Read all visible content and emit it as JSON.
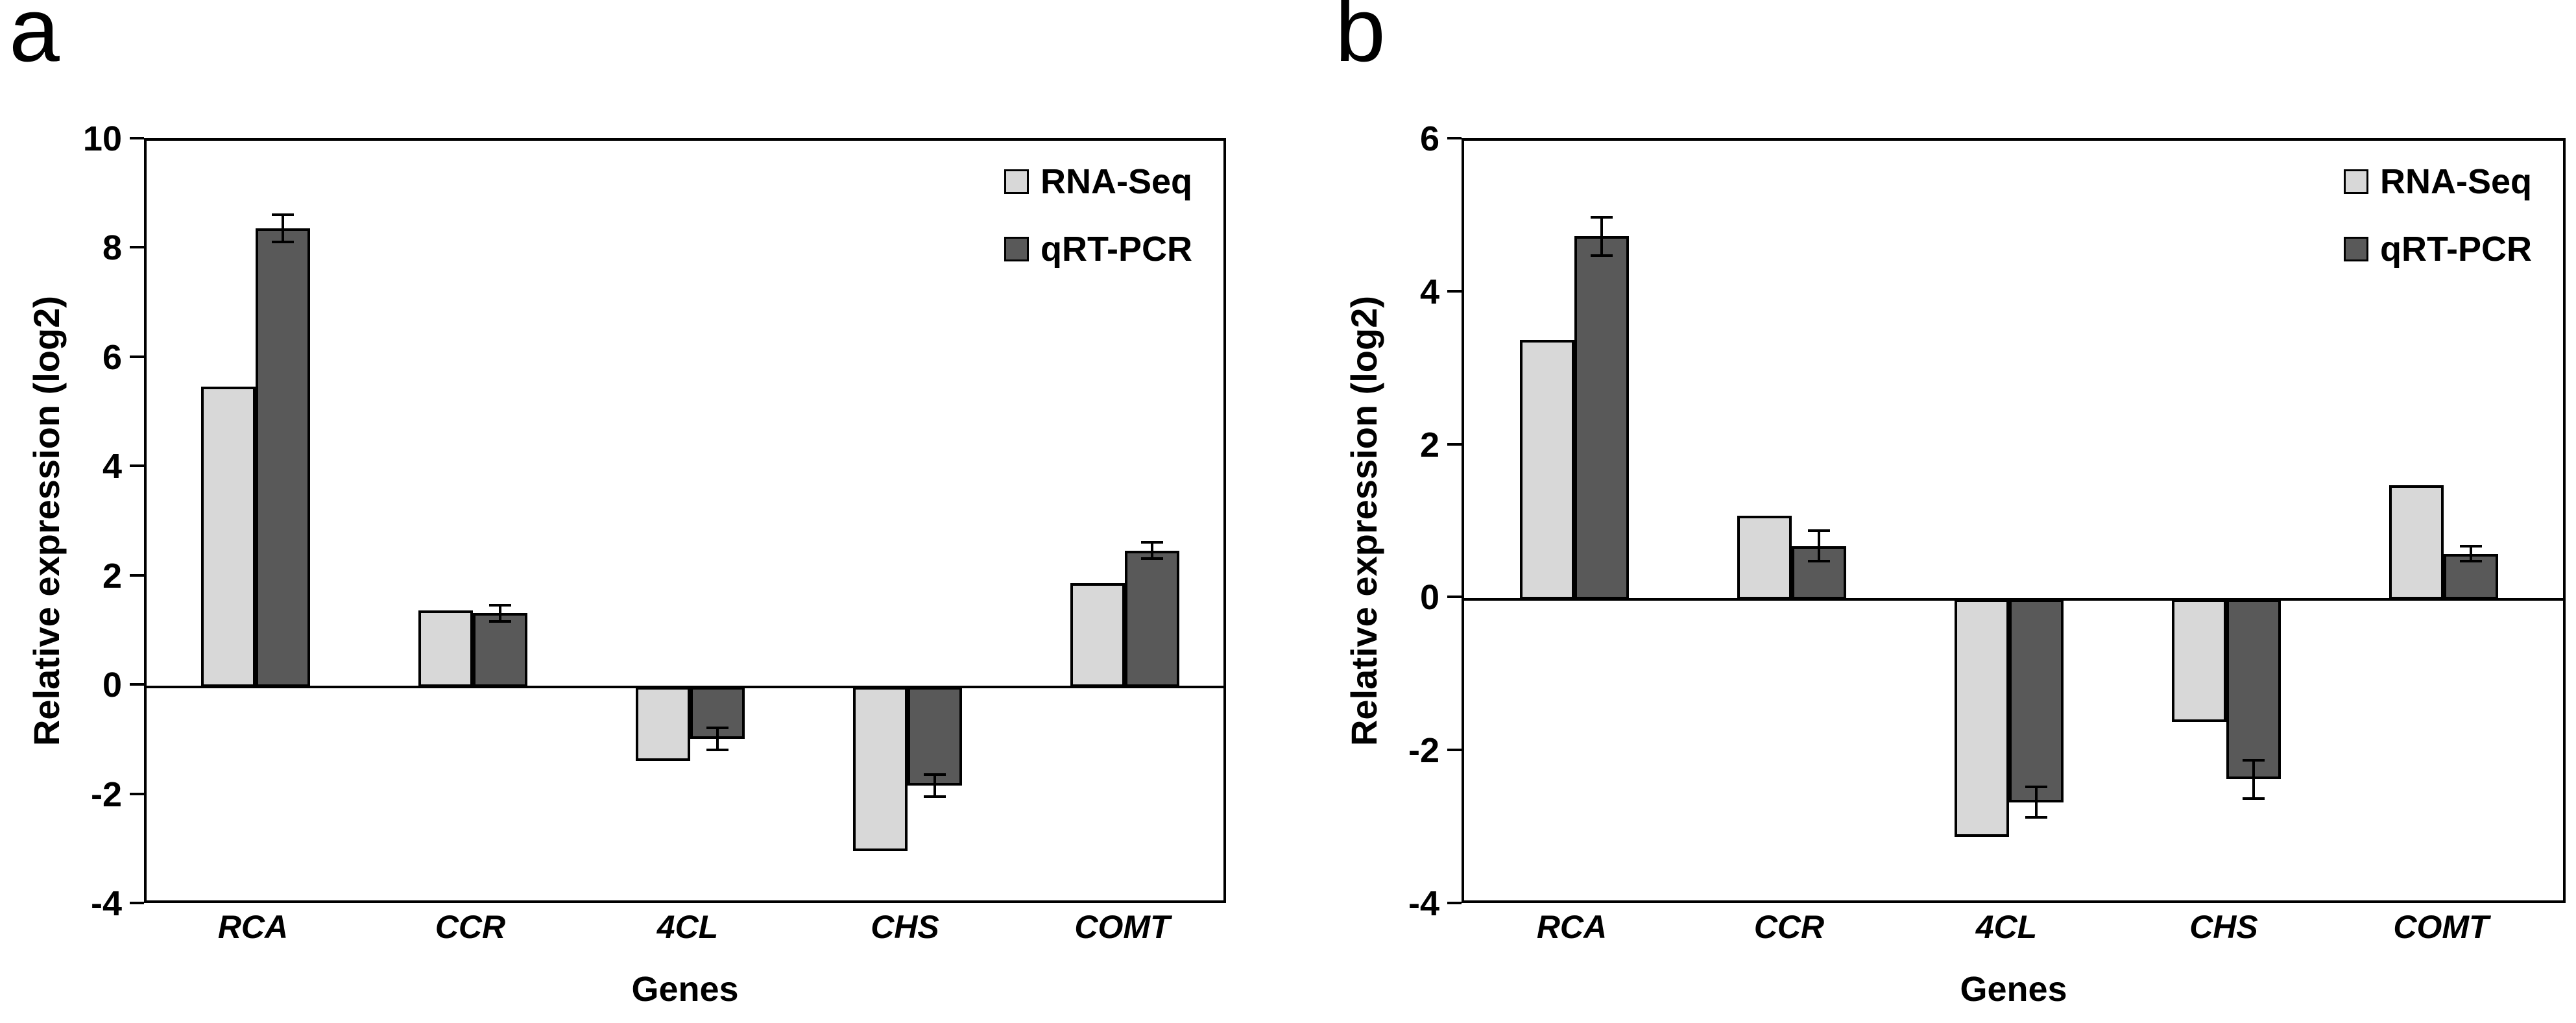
{
  "figure": {
    "background": "#ffffff",
    "panel_letters": [
      "a",
      "b"
    ],
    "text_color": "#000000",
    "axis_color": "#000000",
    "error_bar_color": "#000000"
  },
  "chart_data": [
    {
      "type": "bar",
      "panel_label": "a",
      "title": "",
      "categories": [
        "RCA",
        "CCR",
        "4CL",
        "CHS",
        "COMT"
      ],
      "series": [
        {
          "name": "RNA-Seq",
          "color": "#d8d8d8",
          "values": [
            5.5,
            1.4,
            -1.35,
            -3.0,
            1.9
          ]
        },
        {
          "name": "qRT-PCR",
          "color": "#595959",
          "values": [
            8.4,
            1.35,
            -0.95,
            -1.8,
            2.5
          ],
          "errors": [
            0.25,
            0.15,
            0.2,
            0.2,
            0.15
          ]
        }
      ],
      "xlabel": "Genes",
      "ylabel": "Relative expression (log2)",
      "ylim": [
        -4,
        10
      ],
      "yticks": [
        10,
        8,
        6,
        4,
        2,
        0,
        -2,
        -4
      ],
      "legend": [
        "RNA-Seq",
        "qRT-PCR"
      ],
      "legend_position": "top-right",
      "grid": false
    },
    {
      "type": "bar",
      "panel_label": "b",
      "title": "",
      "categories": [
        "RCA",
        "CCR",
        "4CL",
        "CHS",
        "COMT"
      ],
      "series": [
        {
          "name": "RNA-Seq",
          "color": "#d8d8d8",
          "values": [
            3.4,
            1.1,
            -3.1,
            -1.6,
            1.5
          ]
        },
        {
          "name": "qRT-PCR",
          "color": "#595959",
          "values": [
            4.75,
            0.7,
            -2.65,
            -2.35,
            0.6
          ],
          "errors": [
            0.25,
            0.2,
            0.2,
            0.25,
            0.1
          ]
        }
      ],
      "xlabel": "Genes",
      "ylabel": "Relative expression (log2)",
      "ylim": [
        -4,
        6
      ],
      "yticks": [
        6,
        4,
        2,
        0,
        -2,
        -4
      ],
      "legend": [
        "RNA-Seq",
        "qRT-PCR"
      ],
      "legend_position": "top-right",
      "grid": false
    }
  ]
}
